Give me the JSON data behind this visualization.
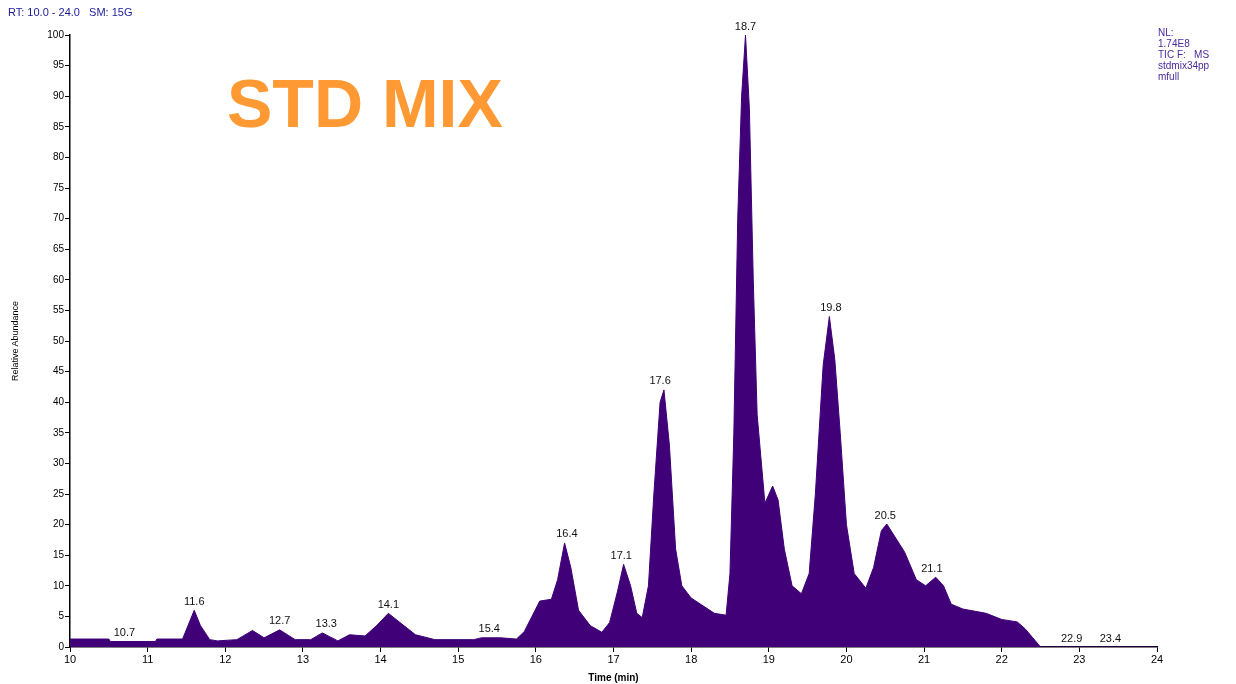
{
  "chart_data": {
    "type": "area",
    "title": "STD MIX",
    "xlabel": "Time (min)",
    "ylabel": "Relative Abundance",
    "x": [
      10,
      10.5,
      10.52,
      11.1,
      11.12,
      11.45,
      11.52,
      11.6,
      11.68,
      11.8,
      11.9,
      12.15,
      12.35,
      12.5,
      12.7,
      12.9,
      13.1,
      13.25,
      13.45,
      13.6,
      13.8,
      13.95,
      14.1,
      14.25,
      14.45,
      14.7,
      15.2,
      15.3,
      15.4,
      15.55,
      15.75,
      15.85,
      15.95,
      16.05,
      16.2,
      16.28,
      16.37,
      16.45,
      16.55,
      16.7,
      16.85,
      16.95,
      17.05,
      17.13,
      17.22,
      17.3,
      17.37,
      17.45,
      17.52,
      17.6,
      17.65,
      17.72,
      17.8,
      17.88,
      18.0,
      18.3,
      18.45,
      18.5,
      18.55,
      18.6,
      18.65,
      18.7,
      18.75,
      18.8,
      18.85,
      18.95,
      19.05,
      19.12,
      19.2,
      19.3,
      19.42,
      19.52,
      19.6,
      19.7,
      19.78,
      19.85,
      19.92,
      20.0,
      20.1,
      20.25,
      20.35,
      20.45,
      20.52,
      20.6,
      20.75,
      20.9,
      21.02,
      21.15,
      21.25,
      21.35,
      21.5,
      21.8,
      22.0,
      22.2,
      22.3,
      22.4,
      22.5,
      24
    ],
    "values": [
      1.3,
      1.3,
      0.9,
      0.9,
      1.3,
      1.3,
      3.5,
      6,
      3.5,
      1.2,
      1,
      1.2,
      2.7,
      1.5,
      2.8,
      1.2,
      1.2,
      2.3,
      1,
      2,
      1.8,
      3.5,
      5.5,
      4,
      2,
      1.2,
      1.2,
      1.5,
      1.5,
      1.5,
      1.3,
      2.5,
      5,
      7.5,
      7.8,
      11,
      17,
      13,
      6,
      3.5,
      2.4,
      4,
      9,
      13.5,
      10,
      5.5,
      4.8,
      10,
      25,
      40,
      42,
      33,
      16,
      10,
      8,
      5.5,
      5.2,
      12,
      35,
      70,
      90,
      100,
      88,
      60,
      38,
      23.5,
      26.3,
      24,
      16,
      10,
      8.7,
      12,
      25,
      46,
      54,
      47,
      35,
      20,
      12,
      9.6,
      13,
      19,
      20.1,
      18.5,
      15.5,
      11,
      10,
      11.4,
      10,
      7,
      6.2,
      5.5,
      4.5,
      4.1,
      3,
      1.5,
      0,
      0
    ],
    "color": "#400078",
    "xlim": [
      10,
      24
    ],
    "xticks": [
      10,
      11,
      12,
      13,
      14,
      15,
      16,
      17,
      18,
      19,
      20,
      21,
      22,
      23,
      24
    ],
    "ylim": [
      0,
      100
    ],
    "yticks": [
      0,
      5,
      10,
      15,
      20,
      25,
      30,
      35,
      40,
      45,
      50,
      55,
      60,
      65,
      70,
      75,
      80,
      85,
      90,
      95,
      100
    ],
    "grid": false,
    "annotations": [
      "RT: 10.0 - 24.0   SM: 15G",
      "NL:\n1.74E8\nTIC F:   MS\nstdmix34pp\nmfull",
      {
        "text": "10.7",
        "x": 10.7,
        "y": 0.9
      },
      {
        "text": "11.6",
        "x": 11.6,
        "y": 6
      },
      {
        "text": "12.7",
        "x": 12.7,
        "y": 2.8
      },
      {
        "text": "13.3",
        "x": 13.3,
        "y": 2.3
      },
      {
        "text": "14.1",
        "x": 14.1,
        "y": 5.5
      },
      {
        "text": "15.4",
        "x": 15.4,
        "y": 1.5
      },
      {
        "text": "16.4",
        "x": 16.4,
        "y": 17
      },
      {
        "text": "17.1",
        "x": 17.1,
        "y": 13.5
      },
      {
        "text": "17.6",
        "x": 17.6,
        "y": 42
      },
      {
        "text": "18.7",
        "x": 18.7,
        "y": 100
      },
      {
        "text": "19.8",
        "x": 19.8,
        "y": 54
      },
      {
        "text": "20.5",
        "x": 20.5,
        "y": 20.1
      },
      {
        "text": "21.1",
        "x": 21.1,
        "y": 11.4
      },
      {
        "text": "22.9",
        "x": 22.9,
        "y": 0
      },
      {
        "text": "23.4",
        "x": 23.4,
        "y": 0
      }
    ]
  }
}
